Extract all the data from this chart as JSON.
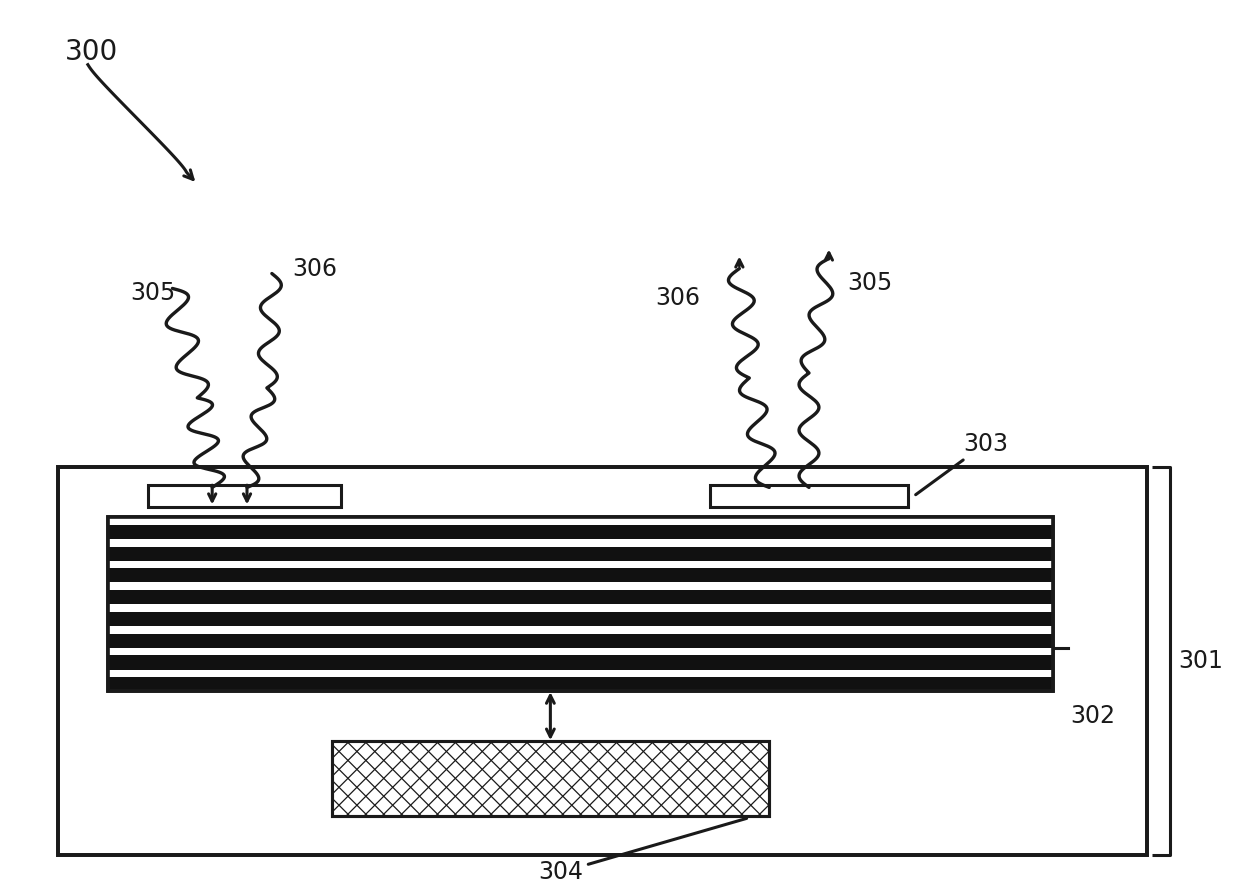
{
  "bg_color": "#ffffff",
  "line_color": "#1a1a1a",
  "label_300": "300",
  "label_301": "301",
  "label_302": "302",
  "label_303": "303",
  "label_304": "304",
  "label_305": "305",
  "label_306": "306",
  "font_size": 17,
  "lw": 2.2
}
